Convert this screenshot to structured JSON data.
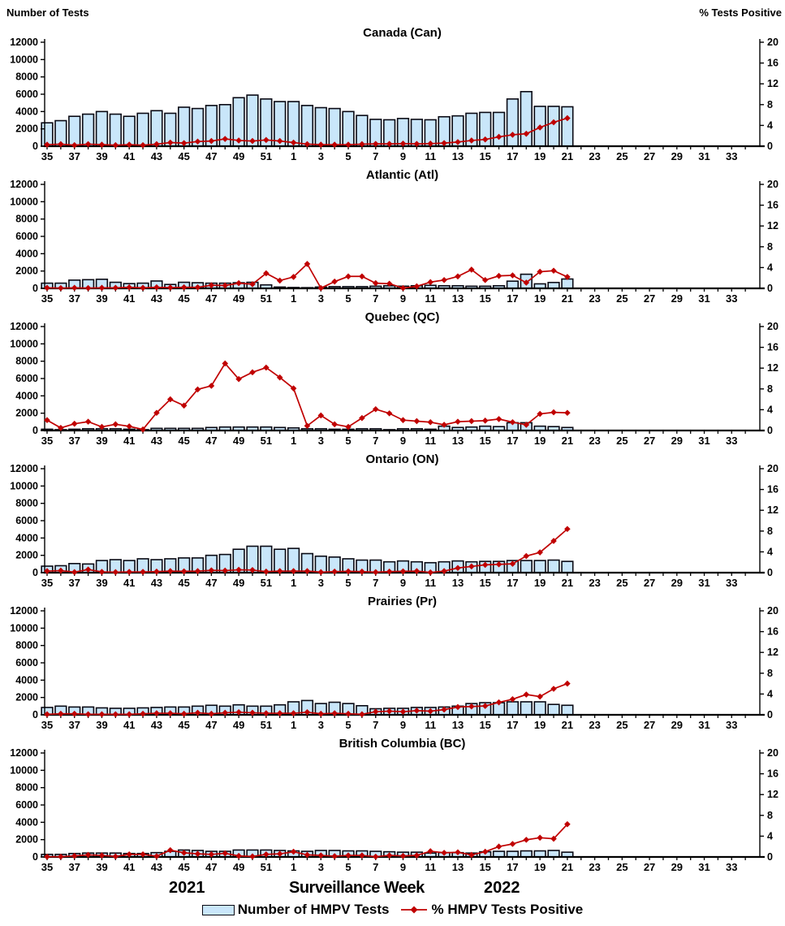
{
  "header": {
    "left_axis_title": "Number of Tests",
    "right_axis_title": "% Tests Positive"
  },
  "footer": {
    "year_left": "2021",
    "xlabel": "Surveillance Week",
    "year_right": "2022"
  },
  "legend": {
    "bars_label": "Number of HMPV Tests",
    "line_label": "% HMPV Tests Positive"
  },
  "colors": {
    "bar_fill": "#C9E6FA",
    "bar_border": "#0A0A14",
    "line": "#C00000",
    "marker": "#C00000",
    "text": "#000000",
    "axis": "#000000"
  },
  "chart_data": {
    "type": "bar",
    "subtype": "combo-bar-line-small-multiples",
    "xlabel": "Surveillance Week",
    "years": [
      "2021",
      "2022"
    ],
    "left_axis": {
      "title": "Number of Tests",
      "ylim": [
        0,
        12000
      ],
      "ticks": [
        0,
        2000,
        4000,
        6000,
        8000,
        10000,
        12000
      ]
    },
    "right_axis": {
      "title": "% Tests Positive",
      "ylim": [
        0,
        20
      ],
      "ticks": [
        0,
        4,
        8,
        12,
        16,
        20
      ]
    },
    "grid": false,
    "legend_position": "bottom",
    "legend": [
      "Number of HMPV Tests",
      "% HMPV Tests Positive"
    ],
    "week_sequence": [
      35,
      36,
      37,
      38,
      39,
      40,
      41,
      42,
      43,
      44,
      45,
      46,
      47,
      48,
      49,
      50,
      51,
      52,
      1,
      2,
      3,
      4,
      5,
      6,
      7,
      8,
      9,
      10,
      11,
      12,
      13,
      14,
      15,
      16,
      17,
      18,
      19,
      20,
      21,
      22,
      23,
      24,
      25,
      26,
      27,
      28,
      29,
      30,
      31,
      32,
      33,
      34
    ],
    "x_tick_labels": [
      35,
      37,
      39,
      41,
      43,
      45,
      47,
      49,
      51,
      1,
      3,
      5,
      7,
      9,
      11,
      13,
      15,
      17,
      19,
      21,
      23,
      25,
      27,
      29,
      31,
      33
    ],
    "data_weeks": [
      35,
      36,
      37,
      38,
      39,
      40,
      41,
      42,
      43,
      44,
      45,
      46,
      47,
      48,
      49,
      50,
      51,
      52,
      1,
      2,
      3,
      4,
      5,
      6,
      7,
      8,
      9,
      10,
      11,
      12,
      13,
      14,
      15,
      16,
      17,
      18,
      19,
      20,
      21
    ],
    "panels": [
      {
        "title": "Canada (Can)",
        "tests": [
          2700,
          2950,
          3450,
          3700,
          4000,
          3700,
          3450,
          3800,
          4100,
          3800,
          4500,
          4350,
          4700,
          4800,
          5600,
          5900,
          5450,
          5150,
          5150,
          4700,
          4450,
          4350,
          4000,
          3550,
          3100,
          3050,
          3200,
          3100,
          3050,
          3400,
          3500,
          3800,
          3900,
          3900,
          5450,
          6300,
          4600,
          4600,
          4550
        ],
        "pct_positive": [
          0.3,
          0.4,
          0.2,
          0.4,
          0.3,
          0.2,
          0.3,
          0.2,
          0.4,
          0.7,
          0.6,
          0.9,
          1.0,
          1.4,
          1.1,
          1.0,
          1.2,
          1.0,
          0.7,
          0.4,
          0.3,
          0.3,
          0.3,
          0.4,
          0.45,
          0.45,
          0.5,
          0.45,
          0.5,
          0.6,
          0.8,
          1.1,
          1.3,
          1.8,
          2.2,
          2.4,
          3.6,
          4.6,
          5.4
        ]
      },
      {
        "title": "Atlantic (Atl)",
        "tests": [
          600,
          600,
          950,
          1000,
          1050,
          700,
          550,
          600,
          850,
          450,
          700,
          650,
          600,
          600,
          650,
          700,
          400,
          150,
          100,
          80,
          150,
          200,
          200,
          200,
          250,
          300,
          250,
          300,
          350,
          300,
          300,
          250,
          250,
          300,
          830,
          1630,
          520,
          680,
          1080
        ],
        "pct_positive": [
          0.1,
          0.05,
          0.1,
          0.05,
          0.1,
          0.1,
          0.2,
          0.1,
          0.2,
          0.15,
          0.2,
          0.2,
          0.6,
          0.55,
          1.0,
          0.8,
          2.9,
          1.5,
          2.2,
          4.7,
          0.05,
          1.3,
          2.3,
          2.3,
          1.0,
          0.9,
          0.05,
          0.4,
          1.2,
          1.6,
          2.3,
          3.6,
          1.6,
          2.4,
          2.5,
          1.1,
          3.2,
          3.4,
          2.2
        ]
      },
      {
        "title": "Quebec (QC)",
        "tests": [
          150,
          100,
          150,
          200,
          200,
          200,
          150,
          100,
          250,
          250,
          250,
          250,
          350,
          400,
          400,
          400,
          400,
          350,
          300,
          200,
          200,
          150,
          150,
          200,
          200,
          100,
          200,
          200,
          150,
          500,
          350,
          400,
          500,
          450,
          900,
          900,
          500,
          450,
          350
        ],
        "pct_positive": [
          2.0,
          0.5,
          1.3,
          1.7,
          0.7,
          1.2,
          0.8,
          0.2,
          3.4,
          6.0,
          4.8,
          7.9,
          8.6,
          12.9,
          9.9,
          11.2,
          12.1,
          10.2,
          8.1,
          0.9,
          2.9,
          1.2,
          0.7,
          2.4,
          4.1,
          3.3,
          2.0,
          1.8,
          1.6,
          1.1,
          1.7,
          1.8,
          1.9,
          2.2,
          1.6,
          1.1,
          3.2,
          3.5,
          3.4
        ]
      },
      {
        "title": "Ontario (ON)",
        "tests": [
          750,
          800,
          1050,
          1000,
          1400,
          1500,
          1400,
          1600,
          1500,
          1600,
          1700,
          1700,
          2000,
          2100,
          2700,
          3050,
          3050,
          2700,
          2800,
          2200,
          1900,
          1800,
          1600,
          1450,
          1450,
          1250,
          1350,
          1250,
          1150,
          1250,
          1350,
          1250,
          1300,
          1300,
          1400,
          1400,
          1400,
          1450,
          1300
        ],
        "pct_positive": [
          0.3,
          0.4,
          0.1,
          0.6,
          0.15,
          0.1,
          0.15,
          0.15,
          0.2,
          0.3,
          0.25,
          0.3,
          0.45,
          0.4,
          0.55,
          0.5,
          0.2,
          0.3,
          0.3,
          0.3,
          0.1,
          0.2,
          0.25,
          0.2,
          0.1,
          0.2,
          0.25,
          0.3,
          0.05,
          0.3,
          0.9,
          1.2,
          1.5,
          1.6,
          1.7,
          3.2,
          3.9,
          6.1,
          8.4
        ]
      },
      {
        "title": "Prairies (Pr)",
        "tests": [
          850,
          1000,
          900,
          900,
          800,
          750,
          750,
          800,
          850,
          900,
          900,
          1000,
          1100,
          1000,
          1150,
          1000,
          1000,
          1150,
          1500,
          1650,
          1300,
          1450,
          1300,
          1050,
          700,
          750,
          750,
          850,
          850,
          900,
          1000,
          1300,
          1400,
          1400,
          1500,
          1500,
          1500,
          1200,
          1100
        ],
        "pct_positive": [
          0.1,
          0.2,
          0.2,
          0.1,
          0.1,
          0.1,
          0.1,
          0.2,
          0.3,
          0.3,
          0.2,
          0.4,
          0.2,
          0.4,
          0.5,
          0.4,
          0.3,
          0.3,
          0.3,
          0.5,
          0.2,
          0.3,
          0.2,
          0.1,
          0.6,
          0.7,
          0.6,
          0.8,
          0.7,
          1.0,
          1.5,
          1.6,
          1.7,
          2.4,
          3.0,
          3.9,
          3.5,
          5.0,
          6.0
        ]
      },
      {
        "title": "British Columbia (BC)",
        "tests": [
          300,
          300,
          400,
          450,
          450,
          450,
          400,
          400,
          500,
          650,
          800,
          750,
          650,
          650,
          800,
          800,
          800,
          750,
          700,
          650,
          750,
          750,
          700,
          700,
          650,
          600,
          550,
          550,
          450,
          500,
          500,
          450,
          600,
          650,
          650,
          700,
          700,
          750,
          550
        ],
        "pct_positive": [
          0.05,
          0.05,
          0.2,
          0.4,
          0.3,
          0.1,
          0.5,
          0.5,
          0.15,
          1.3,
          0.8,
          0.6,
          0.5,
          0.7,
          0.2,
          0.1,
          0.5,
          0.6,
          1.0,
          0.4,
          0.3,
          0.15,
          0.3,
          0.3,
          0.05,
          0.3,
          0.2,
          0.3,
          1.1,
          0.8,
          0.9,
          0.4,
          1.0,
          2.0,
          2.5,
          3.3,
          3.7,
          3.5,
          6.3
        ]
      }
    ]
  }
}
